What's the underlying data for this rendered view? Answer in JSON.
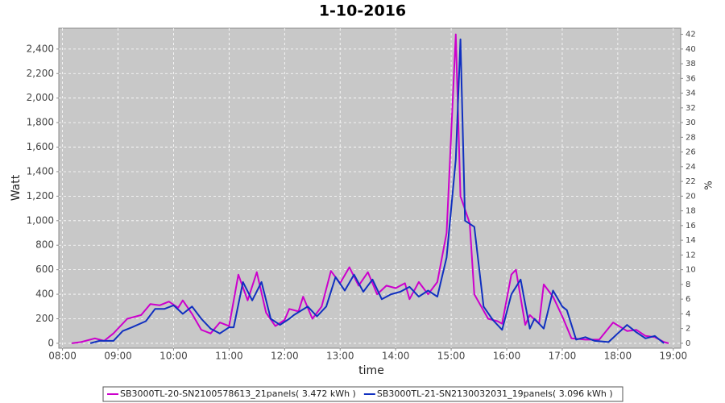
{
  "chart_data": {
    "type": "line",
    "title": "1-10-2016",
    "x_label": "time",
    "y_label": "Watt",
    "y2_label": "%",
    "xlim": [
      "07:56",
      "19:08"
    ],
    "xticks": [
      "08:00",
      "09:00",
      "10:00",
      "11:00",
      "12:00",
      "13:00",
      "14:00",
      "15:00",
      "16:00",
      "17:00",
      "18:00",
      "19:00"
    ],
    "ylim": [
      -40,
      2570
    ],
    "yticks": [
      0,
      200,
      400,
      600,
      800,
      {
        "value": 1000,
        "label": "1,000"
      },
      {
        "value": 1200,
        "label": "1,200"
      },
      {
        "value": 1400,
        "label": "1,400"
      },
      {
        "value": 1600,
        "label": "1,600"
      },
      {
        "value": 1800,
        "label": "1,800"
      },
      {
        "value": 2000,
        "label": "2,000"
      },
      {
        "value": 2200,
        "label": "2,200"
      },
      {
        "value": 2400,
        "label": "2,400"
      }
    ],
    "y2lim": [
      -0.67,
      42.83
    ],
    "y2ticks": [
      0,
      2,
      4,
      6,
      8,
      10,
      12,
      14,
      16,
      18,
      20,
      22,
      24,
      26,
      28,
      30,
      32,
      34,
      36,
      38,
      40,
      42
    ],
    "grid": true,
    "legend": "bottom",
    "series": [
      {
        "name": "SB3000TL-20-SN2100578613_21panels( 3.472 kWh )",
        "color": "#cc00cc",
        "x": [
          "08:10",
          "08:20",
          "08:35",
          "08:45",
          "08:55",
          "09:10",
          "09:25",
          "09:35",
          "09:45",
          "09:55",
          "10:05",
          "10:10",
          "10:20",
          "10:30",
          "10:40",
          "10:50",
          "11:00",
          "11:10",
          "11:20",
          "11:30",
          "11:40",
          "11:50",
          "12:00",
          "12:05",
          "12:15",
          "12:20",
          "12:30",
          "12:40",
          "12:50",
          "13:00",
          "13:10",
          "13:20",
          "13:30",
          "13:40",
          "13:50",
          "14:00",
          "14:10",
          "14:15",
          "14:25",
          "14:35",
          "14:45",
          "14:55",
          "15:05",
          "15:10",
          "15:20",
          "15:25",
          "15:40",
          "15:50",
          "15:55",
          "16:05",
          "16:10",
          "16:20",
          "16:25",
          "16:35",
          "16:40",
          "16:50",
          "17:00",
          "17:10",
          "17:25",
          "17:40",
          "17:55",
          "18:10",
          "18:20",
          "18:30",
          "18:40",
          "18:50",
          "18:55"
        ],
        "values": [
          0,
          10,
          40,
          20,
          80,
          200,
          230,
          320,
          310,
          340,
          290,
          350,
          240,
          110,
          80,
          170,
          140,
          560,
          350,
          580,
          250,
          140,
          190,
          280,
          260,
          380,
          200,
          300,
          590,
          490,
          620,
          470,
          580,
          400,
          470,
          450,
          490,
          360,
          500,
          400,
          500,
          900,
          2520,
          1200,
          980,
          400,
          200,
          180,
          160,
          560,
          600,
          150,
          230,
          160,
          480,
          380,
          220,
          40,
          30,
          30,
          170,
          100,
          110,
          60,
          50,
          10,
          0
        ]
      },
      {
        "name": "SB3000TL-21-SN2130032031_19panels( 3.096 kWh )",
        "color": "#1030c0",
        "x": [
          "08:30",
          "08:40",
          "08:55",
          "09:05",
          "09:15",
          "09:30",
          "09:40",
          "09:50",
          "10:00",
          "10:10",
          "10:20",
          "10:30",
          "10:40",
          "10:50",
          "11:00",
          "11:05",
          "11:15",
          "11:25",
          "11:35",
          "11:45",
          "11:55",
          "12:05",
          "12:10",
          "12:25",
          "12:35",
          "12:45",
          "12:55",
          "13:05",
          "13:15",
          "13:25",
          "13:35",
          "13:45",
          "13:55",
          "14:05",
          "14:15",
          "14:25",
          "14:35",
          "14:45",
          "14:55",
          "15:05",
          "15:10",
          "15:15",
          "15:25",
          "15:35",
          "15:45",
          "15:55",
          "16:05",
          "16:15",
          "16:25",
          "16:30",
          "16:40",
          "16:50",
          "17:00",
          "17:05",
          "17:15",
          "17:25",
          "17:35",
          "17:50",
          "18:00",
          "18:10",
          "18:20",
          "18:30",
          "18:40",
          "18:50"
        ],
        "values": [
          0,
          20,
          20,
          100,
          130,
          180,
          280,
          280,
          310,
          240,
          300,
          200,
          120,
          80,
          130,
          130,
          500,
          350,
          500,
          200,
          150,
          200,
          230,
          300,
          220,
          300,
          540,
          430,
          560,
          420,
          520,
          360,
          400,
          420,
          460,
          380,
          430,
          380,
          700,
          1500,
          2480,
          1000,
          950,
          300,
          190,
          110,
          400,
          520,
          120,
          200,
          120,
          430,
          300,
          270,
          30,
          50,
          20,
          10,
          80,
          150,
          90,
          40,
          60,
          0
        ]
      }
    ]
  }
}
